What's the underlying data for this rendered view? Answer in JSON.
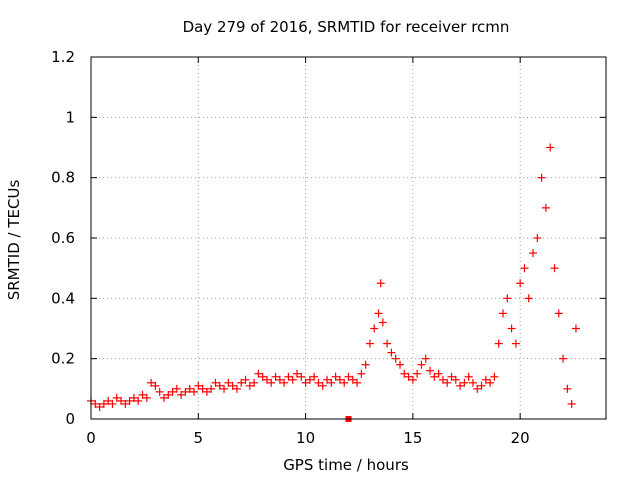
{
  "chart_data": {
    "type": "scatter",
    "title": "Day 279 of 2016, SRMTID for receiver rcmn",
    "xlabel": "GPS time / hours",
    "ylabel": "SRMTID / TECUs",
    "xlim": [
      0,
      24
    ],
    "ylim": [
      0,
      1.2
    ],
    "x_ticks": [
      0,
      5,
      10,
      15,
      20
    ],
    "x_tick_labels": [
      "0",
      "5",
      "10",
      "15",
      "20"
    ],
    "y_ticks": [
      0,
      0.2,
      0.4,
      0.6,
      0.8,
      1.0,
      1.2
    ],
    "y_tick_labels": [
      "0",
      "0.2",
      "0.4",
      "0.6",
      "0.8",
      "1",
      "1.2"
    ],
    "grid": true,
    "marker": "+",
    "colors": {
      "points": "#ff0000",
      "grid": "#a0a0a0",
      "axis": "#000000"
    },
    "series": [
      {
        "name": "rcmn",
        "x": [
          0.0,
          0.2,
          0.4,
          0.6,
          0.8,
          1.0,
          1.2,
          1.4,
          1.6,
          1.8,
          2.0,
          2.2,
          2.4,
          2.6,
          2.8,
          3.0,
          3.2,
          3.4,
          3.6,
          3.8,
          4.0,
          4.2,
          4.4,
          4.6,
          4.8,
          5.0,
          5.2,
          5.4,
          5.6,
          5.8,
          6.0,
          6.2,
          6.4,
          6.6,
          6.8,
          7.0,
          7.2,
          7.4,
          7.6,
          7.8,
          8.0,
          8.2,
          8.4,
          8.6,
          8.8,
          9.0,
          9.2,
          9.4,
          9.6,
          9.8,
          10.0,
          10.2,
          10.4,
          10.6,
          10.8,
          11.0,
          11.2,
          11.4,
          11.6,
          11.8,
          12.0,
          12.2,
          12.4,
          12.6,
          12.8,
          13.0,
          13.2,
          13.4,
          13.5,
          13.6,
          13.8,
          14.0,
          14.2,
          14.4,
          14.6,
          14.8,
          15.0,
          15.2,
          15.4,
          15.6,
          15.8,
          16.0,
          16.2,
          16.4,
          16.6,
          16.8,
          17.0,
          17.2,
          17.4,
          17.6,
          17.8,
          18.0,
          18.2,
          18.4,
          18.6,
          18.8,
          19.0,
          19.2,
          19.4,
          19.6,
          19.8,
          20.0,
          20.2,
          20.4,
          20.6,
          20.8,
          21.0,
          21.2,
          21.4,
          21.6,
          21.8,
          22.0,
          22.2,
          22.4,
          22.6
        ],
        "y": [
          0.06,
          0.05,
          0.04,
          0.05,
          0.06,
          0.05,
          0.07,
          0.06,
          0.05,
          0.06,
          0.07,
          0.06,
          0.08,
          0.07,
          0.12,
          0.11,
          0.09,
          0.07,
          0.08,
          0.09,
          0.1,
          0.08,
          0.09,
          0.1,
          0.09,
          0.11,
          0.1,
          0.09,
          0.1,
          0.12,
          0.11,
          0.1,
          0.12,
          0.11,
          0.1,
          0.12,
          0.13,
          0.11,
          0.12,
          0.15,
          0.14,
          0.13,
          0.12,
          0.14,
          0.13,
          0.12,
          0.14,
          0.13,
          0.15,
          0.14,
          0.12,
          0.13,
          0.14,
          0.12,
          0.11,
          0.13,
          0.12,
          0.14,
          0.13,
          0.12,
          0.14,
          0.13,
          0.12,
          0.15,
          0.18,
          0.25,
          0.3,
          0.35,
          0.45,
          0.32,
          0.25,
          0.22,
          0.2,
          0.18,
          0.15,
          0.14,
          0.13,
          0.15,
          0.18,
          0.2,
          0.16,
          0.14,
          0.15,
          0.13,
          0.12,
          0.14,
          0.13,
          0.11,
          0.12,
          0.14,
          0.12,
          0.1,
          0.11,
          0.13,
          0.12,
          0.14,
          0.25,
          0.35,
          0.4,
          0.3,
          0.25,
          0.45,
          0.5,
          0.4,
          0.55,
          0.6,
          0.8,
          0.7,
          0.9,
          0.5,
          0.35,
          0.2,
          0.1,
          0.05,
          0.3
        ]
      }
    ],
    "outlier": {
      "x": 12.0,
      "y": 0.0
    }
  }
}
